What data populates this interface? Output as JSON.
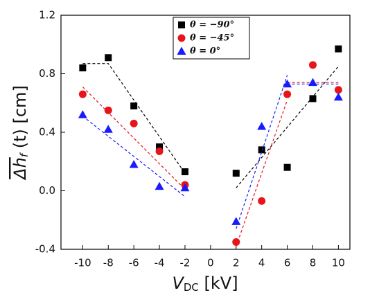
{
  "chart_data": {
    "type": "scatter",
    "xlabel": {
      "base": "V",
      "sub": "DC",
      "rest": " [kV]"
    },
    "ylabel": {
      "base": "Δh",
      "sub": "f",
      "rest": " (t) [cm]"
    },
    "xlim": [
      -11.7,
      10.9
    ],
    "ylim": [
      -0.4,
      1.2
    ],
    "xticks": [
      -10,
      -8,
      -6,
      -4,
      -2,
      0,
      2,
      4,
      6,
      8,
      10
    ],
    "yticks": [
      -0.4,
      {
        "value": 0,
        "label": "0.0"
      },
      0.4,
      0.8,
      1.2
    ],
    "series": [
      {
        "name": "θ = −90°",
        "color": "#000000",
        "marker": "square",
        "x": [
          -10,
          -8,
          -6,
          -4,
          -2,
          2,
          4,
          6,
          8,
          10
        ],
        "values": [
          0.84,
          0.91,
          0.58,
          0.3,
          0.13,
          0.12,
          0.28,
          0.16,
          0.63,
          0.97
        ],
        "fit_x": [
          -10,
          -8,
          -2,
          null,
          2,
          10
        ],
        "fit_y": [
          0.87,
          0.87,
          0.12,
          null,
          0.02,
          0.85
        ]
      },
      {
        "name": "θ = −45°",
        "color": "#e8141b",
        "marker": "circle",
        "x": [
          -10,
          -8,
          -6,
          -4,
          -2,
          2,
          4,
          6,
          8,
          10
        ],
        "values": [
          0.66,
          0.55,
          0.46,
          0.27,
          0.04,
          -0.35,
          -0.07,
          0.66,
          0.86,
          0.69
        ],
        "fit_x": [
          -10,
          -2,
          null,
          2,
          6,
          null,
          6,
          10
        ],
        "fit_y": [
          0.71,
          0.01,
          null,
          -0.38,
          0.62,
          null,
          0.74,
          0.74
        ]
      },
      {
        "name": "θ = 0°",
        "color": "#1a1aff",
        "marker": "triangle",
        "x": [
          -10,
          -8,
          -6,
          -4,
          -2,
          2,
          4,
          6,
          8,
          10
        ],
        "values": [
          0.52,
          0.42,
          0.18,
          0.03,
          0.02,
          -0.21,
          0.44,
          0.73,
          0.74,
          0.64
        ],
        "fit_x": [
          -10,
          -2,
          null,
          2,
          6,
          null,
          6,
          10
        ],
        "fit_y": [
          0.51,
          -0.04,
          null,
          -0.26,
          0.79,
          null,
          0.73,
          0.73
        ]
      }
    ]
  }
}
